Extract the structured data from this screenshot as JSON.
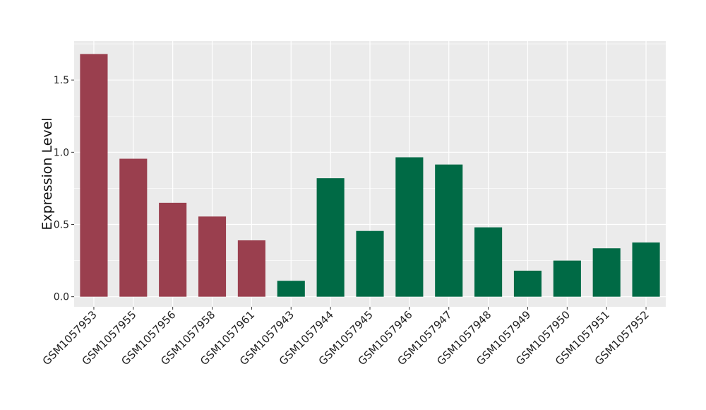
{
  "chart_data": {
    "type": "bar",
    "title": "",
    "xlabel": "",
    "ylabel": "Expression Level",
    "ylim": [
      -0.07,
      1.77
    ],
    "yticks": [
      0.0,
      0.5,
      1.0,
      1.5
    ],
    "ytick_labels": [
      "0.0",
      "0.5",
      "1.0",
      "1.5"
    ],
    "grid": true,
    "legend": "none",
    "categories": [
      "GSM1057953",
      "GSM1057955",
      "GSM1057956",
      "GSM1057958",
      "GSM1057961",
      "GSM1057943",
      "GSM1057944",
      "GSM1057945",
      "GSM1057946",
      "GSM1057947",
      "GSM1057948",
      "GSM1057949",
      "GSM1057950",
      "GSM1057951",
      "GSM1057952"
    ],
    "values": [
      1.68,
      0.955,
      0.65,
      0.555,
      0.39,
      0.11,
      0.82,
      0.455,
      0.965,
      0.915,
      0.48,
      0.18,
      0.25,
      0.335,
      0.375
    ],
    "bar_colors": [
      "#9a3f4e",
      "#9a3f4e",
      "#9a3f4e",
      "#9a3f4e",
      "#9a3f4e",
      "#006a45",
      "#006a45",
      "#006a45",
      "#006a45",
      "#006a45",
      "#006a45",
      "#006a45",
      "#006a45",
      "#006a45",
      "#006a45"
    ],
    "panel_color": "#ebebeb",
    "grid_color": "#ffffff"
  }
}
